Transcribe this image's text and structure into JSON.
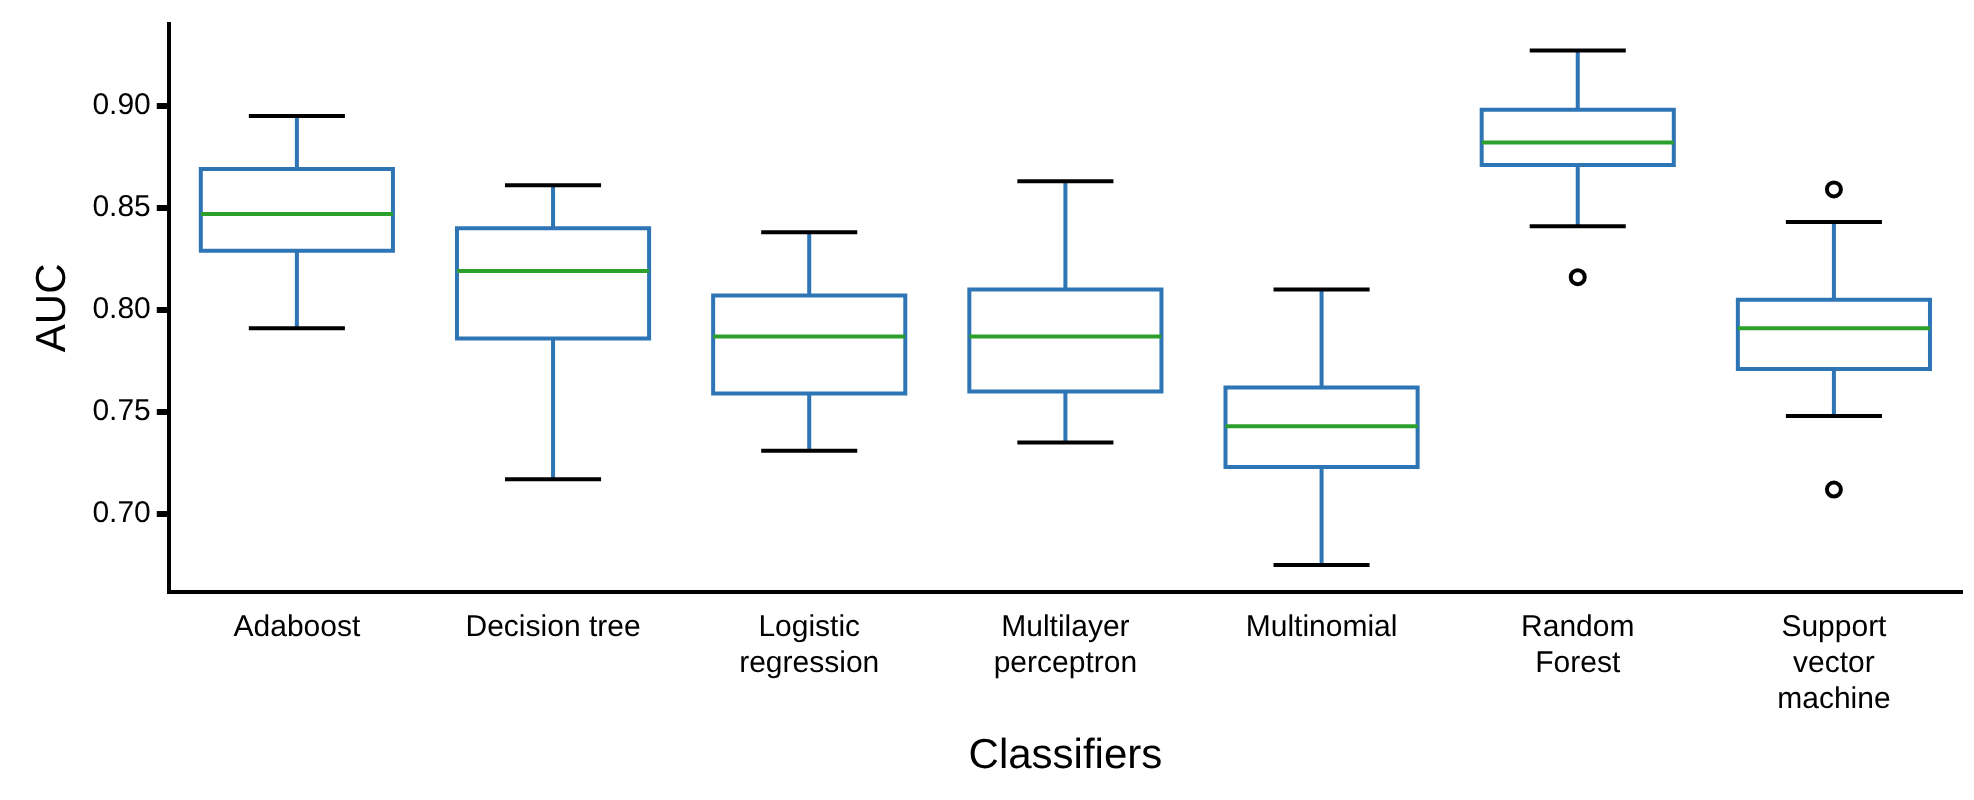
{
  "chart_data": {
    "type": "box",
    "xlabel": "Classifiers",
    "ylabel": "AUC",
    "categories": [
      "Adaboost",
      "Decision tree",
      "Logistic regression",
      "Multilayer perceptron",
      "Multinomial",
      "Random Forest",
      "Support vector machine"
    ],
    "ylim": [
      0.662,
      0.94
    ],
    "yticks": [
      {
        "value": 0.7,
        "label": "0.70"
      },
      {
        "value": 0.75,
        "label": "0.75"
      },
      {
        "value": 0.8,
        "label": "0.80"
      },
      {
        "value": 0.85,
        "label": "0.85"
      },
      {
        "value": 0.9,
        "label": "0.90"
      }
    ],
    "grid": false,
    "legend": false,
    "series": [
      {
        "color": "#2e75b6",
        "boxes": [
          {
            "low": 0.791,
            "q1": 0.829,
            "median": 0.847,
            "q3": 0.869,
            "high": 0.895
          },
          {
            "low": 0.717,
            "q1": 0.786,
            "median": 0.819,
            "q3": 0.84,
            "high": 0.861
          },
          {
            "low": 0.731,
            "q1": 0.759,
            "median": 0.787,
            "q3": 0.807,
            "high": 0.838
          },
          {
            "low": 0.735,
            "q1": 0.76,
            "median": 0.787,
            "q3": 0.81,
            "high": 0.863
          },
          {
            "low": 0.675,
            "q1": 0.723,
            "median": 0.743,
            "q3": 0.762,
            "high": 0.81
          },
          {
            "low": 0.841,
            "q1": 0.871,
            "median": 0.882,
            "q3": 0.898,
            "high": 0.927,
            "outliers": [
              0.816
            ]
          },
          {
            "low": 0.748,
            "q1": 0.771,
            "median": 0.791,
            "q3": 0.805,
            "high": 0.843,
            "outliers": [
              0.859,
              0.712
            ]
          }
        ]
      }
    ]
  }
}
